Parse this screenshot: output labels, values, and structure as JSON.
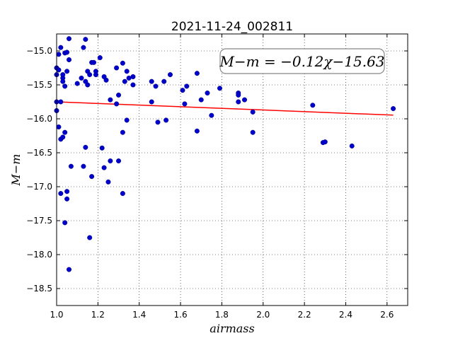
{
  "chart_data": {
    "type": "scatter",
    "title": "2021-11-24_002811",
    "xlabel": "airmass",
    "ylabel": "M−m",
    "xlim": [
      1.0,
      2.7
    ],
    "ylim": [
      -18.75,
      -14.75
    ],
    "xticks": [
      "1.0",
      "1.2",
      "1.4",
      "1.6",
      "1.8",
      "2.0",
      "2.2",
      "2.4",
      "2.6"
    ],
    "yticks": [
      "−15.0",
      "−15.5",
      "−16.0",
      "−16.5",
      "−17.0",
      "−17.5",
      "−18.0",
      "−18.5"
    ],
    "grid": true,
    "annotation": "M−m = −0.12χ−15.63",
    "colors": {
      "points": "#0000cc",
      "fit": "#ff0000"
    },
    "fit": {
      "slope": -0.12,
      "intercept": -15.63,
      "x_range": [
        1.0,
        2.63
      ]
    },
    "points": [
      {
        "x": 1.0,
        "y": -15.25
      },
      {
        "x": 1.0,
        "y": -15.35
      },
      {
        "x": 1.0,
        "y": -15.75
      },
      {
        "x": 1.0,
        "y": -15.88
      },
      {
        "x": 1.01,
        "y": -16.12
      },
      {
        "x": 1.01,
        "y": -15.05
      },
      {
        "x": 1.01,
        "y": -15.28
      },
      {
        "x": 1.02,
        "y": -14.95
      },
      {
        "x": 1.02,
        "y": -15.75
      },
      {
        "x": 1.02,
        "y": -17.1
      },
      {
        "x": 1.02,
        "y": -16.3
      },
      {
        "x": 1.03,
        "y": -15.4
      },
      {
        "x": 1.03,
        "y": -15.45
      },
      {
        "x": 1.03,
        "y": -15.35
      },
      {
        "x": 1.03,
        "y": -16.27
      },
      {
        "x": 1.04,
        "y": -15.03
      },
      {
        "x": 1.04,
        "y": -15.52
      },
      {
        "x": 1.04,
        "y": -16.2
      },
      {
        "x": 1.04,
        "y": -17.53
      },
      {
        "x": 1.05,
        "y": -15.02
      },
      {
        "x": 1.05,
        "y": -15.3
      },
      {
        "x": 1.05,
        "y": -17.07
      },
      {
        "x": 1.05,
        "y": -17.18
      },
      {
        "x": 1.06,
        "y": -15.13
      },
      {
        "x": 1.06,
        "y": -18.22
      },
      {
        "x": 1.06,
        "y": -14.82
      },
      {
        "x": 1.07,
        "y": -16.7
      },
      {
        "x": 1.1,
        "y": -15.48
      },
      {
        "x": 1.12,
        "y": -15.4
      },
      {
        "x": 1.13,
        "y": -14.95
      },
      {
        "x": 1.13,
        "y": -16.7
      },
      {
        "x": 1.14,
        "y": -14.83
      },
      {
        "x": 1.14,
        "y": -16.42
      },
      {
        "x": 1.14,
        "y": -15.45
      },
      {
        "x": 1.15,
        "y": -15.5
      },
      {
        "x": 1.15,
        "y": -15.3
      },
      {
        "x": 1.16,
        "y": -15.35
      },
      {
        "x": 1.16,
        "y": -17.75
      },
      {
        "x": 1.17,
        "y": -15.17
      },
      {
        "x": 1.17,
        "y": -16.85
      },
      {
        "x": 1.18,
        "y": -15.17
      },
      {
        "x": 1.19,
        "y": -15.3
      },
      {
        "x": 1.19,
        "y": -15.35
      },
      {
        "x": 1.21,
        "y": -15.1
      },
      {
        "x": 1.22,
        "y": -16.43
      },
      {
        "x": 1.23,
        "y": -15.38
      },
      {
        "x": 1.23,
        "y": -16.72
      },
      {
        "x": 1.24,
        "y": -15.43
      },
      {
        "x": 1.25,
        "y": -16.93
      },
      {
        "x": 1.26,
        "y": -15.72
      },
      {
        "x": 1.26,
        "y": -16.62
      },
      {
        "x": 1.29,
        "y": -15.25
      },
      {
        "x": 1.29,
        "y": -15.78
      },
      {
        "x": 1.3,
        "y": -15.65
      },
      {
        "x": 1.3,
        "y": -16.62
      },
      {
        "x": 1.32,
        "y": -15.18
      },
      {
        "x": 1.32,
        "y": -16.2
      },
      {
        "x": 1.32,
        "y": -17.1
      },
      {
        "x": 1.33,
        "y": -15.45
      },
      {
        "x": 1.34,
        "y": -15.3
      },
      {
        "x": 1.34,
        "y": -16.02
      },
      {
        "x": 1.35,
        "y": -15.4
      },
      {
        "x": 1.37,
        "y": -15.38
      },
      {
        "x": 1.37,
        "y": -15.5
      },
      {
        "x": 1.46,
        "y": -15.45
      },
      {
        "x": 1.46,
        "y": -15.75
      },
      {
        "x": 1.48,
        "y": -15.52
      },
      {
        "x": 1.49,
        "y": -16.05
      },
      {
        "x": 1.52,
        "y": -15.45
      },
      {
        "x": 1.53,
        "y": -16.02
      },
      {
        "x": 1.55,
        "y": -15.35
      },
      {
        "x": 1.61,
        "y": -15.58
      },
      {
        "x": 1.62,
        "y": -15.78
      },
      {
        "x": 1.63,
        "y": -15.52
      },
      {
        "x": 1.68,
        "y": -15.33
      },
      {
        "x": 1.68,
        "y": -16.18
      },
      {
        "x": 1.7,
        "y": -15.72
      },
      {
        "x": 1.73,
        "y": -15.62
      },
      {
        "x": 1.75,
        "y": -15.95
      },
      {
        "x": 1.79,
        "y": -15.55
      },
      {
        "x": 1.88,
        "y": -15.62
      },
      {
        "x": 1.88,
        "y": -15.65
      },
      {
        "x": 1.88,
        "y": -15.75
      },
      {
        "x": 1.91,
        "y": -15.72
      },
      {
        "x": 1.95,
        "y": -15.9
      },
      {
        "x": 1.95,
        "y": -16.2
      },
      {
        "x": 2.24,
        "y": -15.8
      },
      {
        "x": 2.29,
        "y": -16.35
      },
      {
        "x": 2.3,
        "y": -16.34
      },
      {
        "x": 2.43,
        "y": -16.4
      },
      {
        "x": 2.63,
        "y": -15.85
      }
    ]
  }
}
